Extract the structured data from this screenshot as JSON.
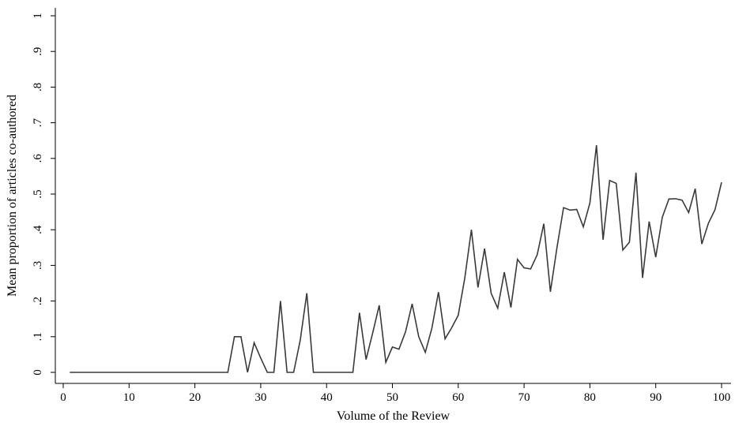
{
  "chart_data": {
    "type": "line",
    "title": "",
    "xlabel": "Volume of the Review",
    "ylabel": "Mean proportion of articles co-authored",
    "xlim": [
      0,
      100
    ],
    "ylim": [
      0,
      1
    ],
    "grid": false,
    "legend": "none",
    "line_color": "#3a3a3a",
    "x_ticks": [
      {
        "value": 0,
        "label": "0"
      },
      {
        "value": 10,
        "label": "10"
      },
      {
        "value": 20,
        "label": "20"
      },
      {
        "value": 30,
        "label": "30"
      },
      {
        "value": 40,
        "label": "40"
      },
      {
        "value": 50,
        "label": "50"
      },
      {
        "value": 60,
        "label": "60"
      },
      {
        "value": 70,
        "label": "70"
      },
      {
        "value": 80,
        "label": "80"
      },
      {
        "value": 90,
        "label": "90"
      },
      {
        "value": 100,
        "label": "100"
      }
    ],
    "y_ticks": [
      {
        "value": 0,
        "label": "0"
      },
      {
        "value": 0.1,
        "label": ".1"
      },
      {
        "value": 0.2,
        "label": ".2"
      },
      {
        "value": 0.3,
        "label": ".3"
      },
      {
        "value": 0.4,
        "label": ".4"
      },
      {
        "value": 0.5,
        "label": ".5"
      },
      {
        "value": 0.6,
        "label": ".6"
      },
      {
        "value": 0.7,
        "label": ".7"
      },
      {
        "value": 0.8,
        "label": ".8"
      },
      {
        "value": 0.9,
        "label": ".9"
      },
      {
        "value": 1,
        "label": "1"
      }
    ],
    "series": [
      {
        "x": [
          1,
          2,
          3,
          4,
          5,
          6,
          7,
          8,
          9,
          10,
          11,
          12,
          13,
          14,
          15,
          16,
          17,
          18,
          19,
          20,
          21,
          22,
          23,
          24,
          25,
          26,
          27,
          28,
          29,
          30,
          31,
          32,
          33,
          34,
          35,
          36,
          37,
          38,
          39,
          40,
          41,
          42,
          43,
          44,
          45,
          46,
          47,
          48,
          49,
          50,
          51,
          52,
          53,
          54,
          55,
          56,
          57,
          58,
          59,
          60,
          61,
          62,
          63,
          64,
          65,
          66,
          67,
          68,
          69,
          70,
          71,
          72,
          73,
          74,
          75,
          76,
          77,
          78,
          79,
          80,
          81,
          82,
          83,
          84,
          85,
          86,
          87,
          88,
          89,
          90,
          91,
          92,
          93,
          94,
          95,
          96,
          97,
          98,
          99,
          100
        ],
        "values": [
          0,
          0,
          0,
          0,
          0,
          0,
          0,
          0,
          0,
          0,
          0,
          0,
          0,
          0,
          0,
          0,
          0,
          0,
          0,
          0,
          0,
          0,
          0,
          0,
          0,
          0.1,
          0.1,
          0,
          0.083,
          0.04,
          0,
          0,
          0.2,
          0,
          0,
          0.09,
          0.222,
          0,
          0,
          0,
          0,
          0,
          0,
          0,
          0.167,
          0.036,
          0.11,
          0.188,
          0.028,
          0.071,
          0.065,
          0.114,
          0.192,
          0.1,
          0.056,
          0.124,
          0.225,
          0.094,
          0.125,
          0.16,
          0.265,
          0.4,
          0.238,
          0.347,
          0.222,
          0.18,
          0.281,
          0.182,
          0.317,
          0.293,
          0.29,
          0.33,
          0.417,
          0.226,
          0.35,
          0.462,
          0.455,
          0.457,
          0.408,
          0.475,
          0.637,
          0.372,
          0.538,
          0.53,
          0.343,
          0.365,
          0.56,
          0.265,
          0.423,
          0.323,
          0.435,
          0.486,
          0.487,
          0.483,
          0.448,
          0.515,
          0.36,
          0.418,
          0.456,
          0.533
        ]
      }
    ]
  }
}
